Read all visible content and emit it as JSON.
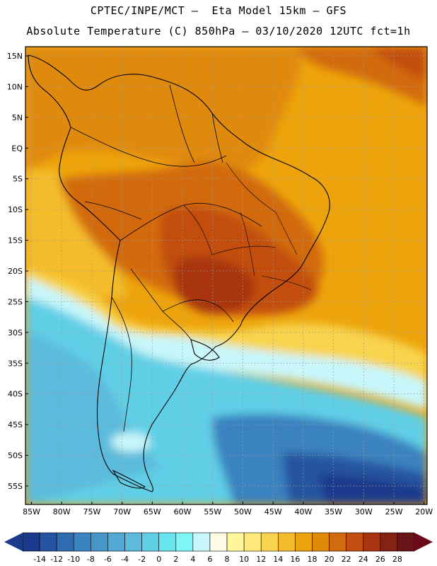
{
  "header": {
    "line1": "CPTEC/INPE/MCT –  Eta Model 15km – GFS",
    "line2": "Absolute Temperature (C) 850hPa – 03/10/2020 12UTC fct=1h"
  },
  "map": {
    "lon_range": [
      -86,
      -19.5
    ],
    "lat_range": [
      -58,
      16.5
    ],
    "lat_ticks": [
      {
        "value": 15,
        "label": "15N"
      },
      {
        "value": 10,
        "label": "10N"
      },
      {
        "value": 5,
        "label": "5N"
      },
      {
        "value": 0,
        "label": "EQ"
      },
      {
        "value": -5,
        "label": "5S"
      },
      {
        "value": -10,
        "label": "10S"
      },
      {
        "value": -15,
        "label": "15S"
      },
      {
        "value": -20,
        "label": "20S"
      },
      {
        "value": -25,
        "label": "25S"
      },
      {
        "value": -30,
        "label": "30S"
      },
      {
        "value": -35,
        "label": "35S"
      },
      {
        "value": -40,
        "label": "40S"
      },
      {
        "value": -45,
        "label": "45S"
      },
      {
        "value": -50,
        "label": "50S"
      },
      {
        "value": -55,
        "label": "55S"
      }
    ],
    "lon_ticks": [
      {
        "value": -85,
        "label": "85W"
      },
      {
        "value": -80,
        "label": "80W"
      },
      {
        "value": -75,
        "label": "75W"
      },
      {
        "value": -70,
        "label": "70W"
      },
      {
        "value": -65,
        "label": "65W"
      },
      {
        "value": -60,
        "label": "60W"
      },
      {
        "value": -55,
        "label": "55W"
      },
      {
        "value": -50,
        "label": "50W"
      },
      {
        "value": -45,
        "label": "45W"
      },
      {
        "value": -40,
        "label": "40W"
      },
      {
        "value": -35,
        "label": "35W"
      },
      {
        "value": -30,
        "label": "30W"
      },
      {
        "value": -25,
        "label": "25W"
      },
      {
        "value": -20,
        "label": "20W"
      }
    ]
  },
  "colorbar": {
    "labels": [
      "-14",
      "-12",
      "-10",
      "-8",
      "-6",
      "-4",
      "-2",
      "0",
      "2",
      "4",
      "6",
      "8",
      "10",
      "12",
      "14",
      "16",
      "18",
      "20",
      "22",
      "24",
      "26",
      "28"
    ],
    "colors": [
      "#1b3a8c",
      "#2554a0",
      "#2e6bb0",
      "#3a82c0",
      "#4796c8",
      "#52a8d2",
      "#5cbbdc",
      "#60cfe6",
      "#68e4ee",
      "#7ef6f6",
      "#c8f6fa",
      "#fffbe6",
      "#fff79a",
      "#ffe97a",
      "#f8d44e",
      "#f4bc2c",
      "#eda40c",
      "#e08a0c",
      "#d26a10",
      "#c24e10",
      "#a83410",
      "#842214",
      "#6a1418"
    ],
    "under_color": "#1b3a8c",
    "over_color": "#6a0a18"
  }
}
